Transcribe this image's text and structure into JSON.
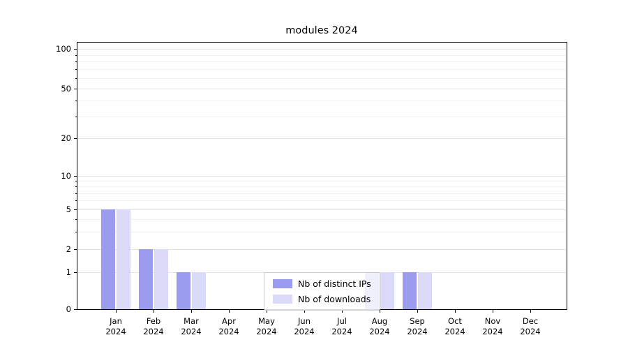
{
  "title": "modules 2024",
  "chart_data": {
    "type": "bar",
    "title": "modules 2024",
    "x_months": [
      "Jan",
      "Feb",
      "Mar",
      "Apr",
      "May",
      "Jun",
      "Jul",
      "Aug",
      "Sep",
      "Oct",
      "Nov",
      "Dec"
    ],
    "x_year": "2024",
    "series": [
      {
        "name": "Nb of distinct IPs",
        "color": "#9b9bef",
        "values": [
          5,
          2,
          1,
          0,
          0,
          0,
          0,
          1,
          1,
          0,
          0,
          0
        ]
      },
      {
        "name": "Nb of downloads",
        "color": "#dadaf8",
        "values": [
          5,
          2,
          1,
          0,
          0,
          0,
          0,
          1,
          1,
          0,
          0,
          0
        ]
      }
    ],
    "yscale": "symlog",
    "y_major_ticks": [
      0,
      1,
      2,
      5,
      10,
      20,
      50,
      100
    ],
    "y_minor_ticks": [
      3,
      4,
      6,
      7,
      8,
      9,
      30,
      40,
      60,
      70,
      80,
      90
    ],
    "ylim": [
      0,
      110
    ],
    "grid": true,
    "legend": {
      "position": "lower center",
      "entries": [
        "Nb of distinct IPs",
        "Nb of downloads"
      ]
    }
  }
}
